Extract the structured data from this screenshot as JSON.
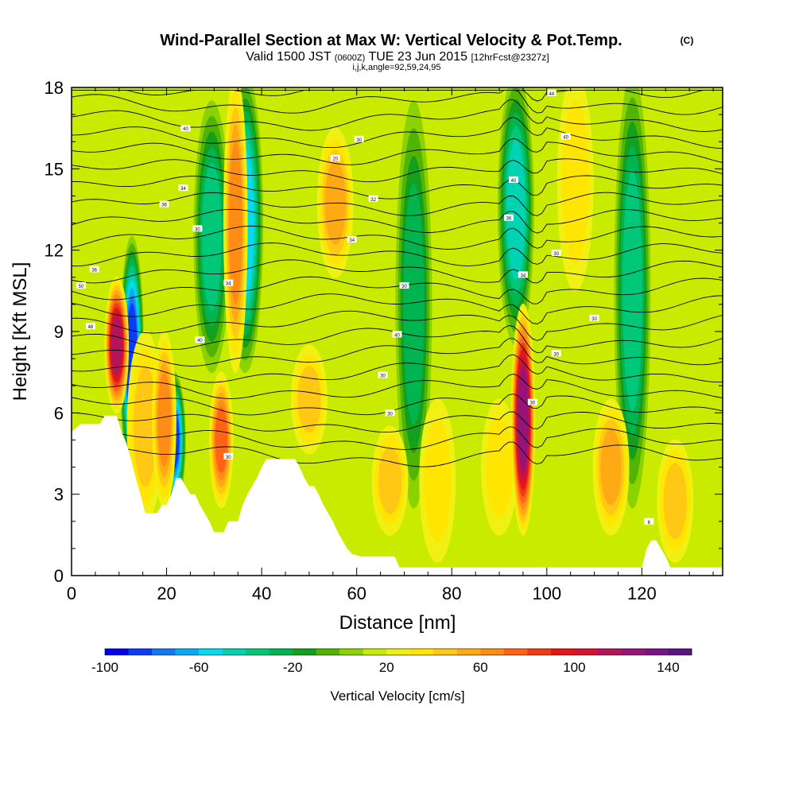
{
  "title": {
    "main": "Wind-Parallel Section at Max W: Vertical Velocity & Pot.Temp.",
    "copyright": "(C)",
    "valid_prefix": "Valid 1500 JST",
    "valid_utc": "(0600Z)",
    "valid_date": "TUE 23 Jun 2015",
    "forecast": "[12hrFcst@2327z]",
    "indices": "i,j,k,angle=92,59,24,95"
  },
  "chart_data": {
    "type": "heatmap",
    "xlabel": "Distance [nm]",
    "ylabel": "Height [Kft MSL]",
    "xlim": [
      0,
      137
    ],
    "ylim": [
      0,
      18
    ],
    "x_ticks": [
      0,
      20,
      40,
      60,
      80,
      100,
      120
    ],
    "y_ticks": [
      0,
      3,
      6,
      9,
      12,
      15,
      18
    ],
    "x_tick_labels": [
      "0",
      "20",
      "40",
      "60",
      "80",
      "100",
      "120"
    ],
    "y_tick_labels": [
      "0",
      "3",
      "6",
      "9",
      "12",
      "15",
      "18"
    ],
    "x_minor_step": 5,
    "y_minor_step": 1,
    "colorbar": {
      "label": "Vertical Velocity [cm/s]",
      "min": -100,
      "max": 150,
      "step": 10,
      "tick_values": [
        -100,
        -60,
        -20,
        20,
        60,
        100,
        140
      ],
      "tick_labels": [
        "-100",
        "-60",
        "-20",
        "20",
        "60",
        "100",
        "140"
      ],
      "colors": [
        "#0000f0",
        "#0a3cf5",
        "#1478f0",
        "#0aaaf5",
        "#00dcf0",
        "#00d2b4",
        "#00c878",
        "#00b450",
        "#14a01e",
        "#50b400",
        "#8cd200",
        "#c8eb00",
        "#f0f014",
        "#ffe600",
        "#ffc814",
        "#ffaa14",
        "#ff8c14",
        "#ff6414",
        "#f03c14",
        "#e61414",
        "#d21432",
        "#b4145a",
        "#961478",
        "#781482",
        "#5a1482"
      ]
    },
    "background_w": 18,
    "updrafts": [
      {
        "x": 9.5,
        "y0": 6.5,
        "y1": 10.5,
        "w": 120
      },
      {
        "x": 15.5,
        "y0": 2.5,
        "y1": 8.5,
        "w": 55
      },
      {
        "x": 19.5,
        "y0": 3,
        "y1": 8.5,
        "w": 75
      },
      {
        "x": 31.5,
        "y0": 3,
        "y1": 7,
        "w": 80
      },
      {
        "x": 34.5,
        "y0": 8,
        "y1": 18,
        "w": 75
      },
      {
        "x": 50,
        "y0": 5,
        "y1": 8,
        "w": 50
      },
      {
        "x": 55.5,
        "y0": 11.5,
        "y1": 16,
        "w": 60
      },
      {
        "x": 67,
        "y0": 2,
        "y1": 5,
        "w": 50
      },
      {
        "x": 77,
        "y0": 1,
        "y1": 6,
        "w": 45
      },
      {
        "x": 90,
        "y0": 2,
        "y1": 6,
        "w": 45
      },
      {
        "x": 95,
        "y0": 2,
        "y1": 9.5,
        "w": 135
      },
      {
        "x": 106,
        "y0": 11,
        "y1": 18,
        "w": 40
      },
      {
        "x": 113.5,
        "y0": 2,
        "y1": 6,
        "w": 60
      },
      {
        "x": 127,
        "y0": 1,
        "y1": 4.5,
        "w": 50
      }
    ],
    "downdrafts": [
      {
        "x": 12.7,
        "y0": 4,
        "y1": 12,
        "w": -90
      },
      {
        "x": 21.5,
        "y0": 3,
        "y1": 7,
        "w": -85
      },
      {
        "x": 36.5,
        "y0": 8,
        "y1": 18,
        "w": -60
      },
      {
        "x": 29.5,
        "y0": 8,
        "y1": 17,
        "w": -40
      },
      {
        "x": 93.5,
        "y0": 9,
        "y1": 18,
        "w": -45
      },
      {
        "x": 118,
        "y0": 3,
        "y1": 18,
        "w": -40
      },
      {
        "x": 72,
        "y0": 3,
        "y1": 17,
        "w": -30
      }
    ],
    "terrain_kft": [
      [
        0,
        5.3
      ],
      [
        2,
        5.6
      ],
      [
        6,
        5.6
      ],
      [
        7,
        5.9
      ],
      [
        9.5,
        5.9
      ],
      [
        10.5,
        5.3
      ],
      [
        11.5,
        4.9
      ],
      [
        12.5,
        4.3
      ],
      [
        13.5,
        3.6
      ],
      [
        14.5,
        3.0
      ],
      [
        15.5,
        2.3
      ],
      [
        18,
        2.3
      ],
      [
        19,
        2.6
      ],
      [
        20,
        2.6
      ],
      [
        21,
        3.0
      ],
      [
        22,
        3.6
      ],
      [
        23,
        3.6
      ],
      [
        24,
        3.3
      ],
      [
        25,
        3.0
      ],
      [
        26,
        3.0
      ],
      [
        27,
        2.6
      ],
      [
        28,
        2.3
      ],
      [
        29,
        2.0
      ],
      [
        30,
        1.6
      ],
      [
        32,
        1.6
      ],
      [
        33,
        2.0
      ],
      [
        35,
        2.0
      ],
      [
        36,
        2.6
      ],
      [
        37,
        3.0
      ],
      [
        38,
        3.3
      ],
      [
        39,
        3.6
      ],
      [
        40,
        4.0
      ],
      [
        41,
        4.3
      ],
      [
        47,
        4.3
      ],
      [
        48,
        4.0
      ],
      [
        49,
        3.6
      ],
      [
        50,
        3.3
      ],
      [
        51,
        3.3
      ],
      [
        52,
        3.0
      ],
      [
        53,
        2.6
      ],
      [
        54,
        2.3
      ],
      [
        55,
        2.0
      ],
      [
        56,
        1.6
      ],
      [
        57,
        1.3
      ],
      [
        58,
        1.0
      ],
      [
        59,
        0.8
      ],
      [
        61,
        0.7
      ],
      [
        68,
        0.7
      ],
      [
        69,
        0.3
      ],
      [
        120,
        0.3
      ],
      [
        121,
        1.0
      ],
      [
        122,
        1.3
      ],
      [
        123,
        1.3
      ],
      [
        124,
        1.0
      ],
      [
        125,
        0.7
      ],
      [
        126,
        0.3
      ],
      [
        137,
        0.3
      ]
    ],
    "theta_contour_labels": [
      {
        "text": "50",
        "x": 2,
        "y": 10.7
      },
      {
        "text": "48",
        "x": 4,
        "y": 9.2
      },
      {
        "text": "36",
        "x": 4.8,
        "y": 11.3
      },
      {
        "text": "34",
        "x": 23.5,
        "y": 14.3
      },
      {
        "text": "36",
        "x": 19.5,
        "y": 13.7
      },
      {
        "text": "40",
        "x": 24,
        "y": 16.5
      },
      {
        "text": "30",
        "x": 26.5,
        "y": 12.8
      },
      {
        "text": "34",
        "x": 33,
        "y": 10.8
      },
      {
        "text": "40",
        "x": 27,
        "y": 8.7
      },
      {
        "text": "30",
        "x": 33,
        "y": 4.4
      },
      {
        "text": "20",
        "x": 55.5,
        "y": 15.4
      },
      {
        "text": "30",
        "x": 60.5,
        "y": 16.1
      },
      {
        "text": "32",
        "x": 63.5,
        "y": 13.9
      },
      {
        "text": "34",
        "x": 59,
        "y": 12.4
      },
      {
        "text": "30",
        "x": 70,
        "y": 10.7
      },
      {
        "text": "40",
        "x": 68.5,
        "y": 8.9
      },
      {
        "text": "30",
        "x": 65.5,
        "y": 7.4
      },
      {
        "text": "30",
        "x": 67,
        "y": 6.0
      },
      {
        "text": "40",
        "x": 93,
        "y": 14.6
      },
      {
        "text": "36",
        "x": 92,
        "y": 13.2
      },
      {
        "text": "34",
        "x": 95,
        "y": 11.1
      },
      {
        "text": "30",
        "x": 97,
        "y": 6.4
      },
      {
        "text": "44",
        "x": 101,
        "y": 17.8
      },
      {
        "text": "40",
        "x": 104,
        "y": 16.2
      },
      {
        "text": "30",
        "x": 102,
        "y": 11.9
      },
      {
        "text": "30",
        "x": 110,
        "y": 9.5
      },
      {
        "text": "30",
        "x": 102,
        "y": 8.2
      },
      {
        "text": "6",
        "x": 121.5,
        "y": 2.0
      }
    ]
  }
}
